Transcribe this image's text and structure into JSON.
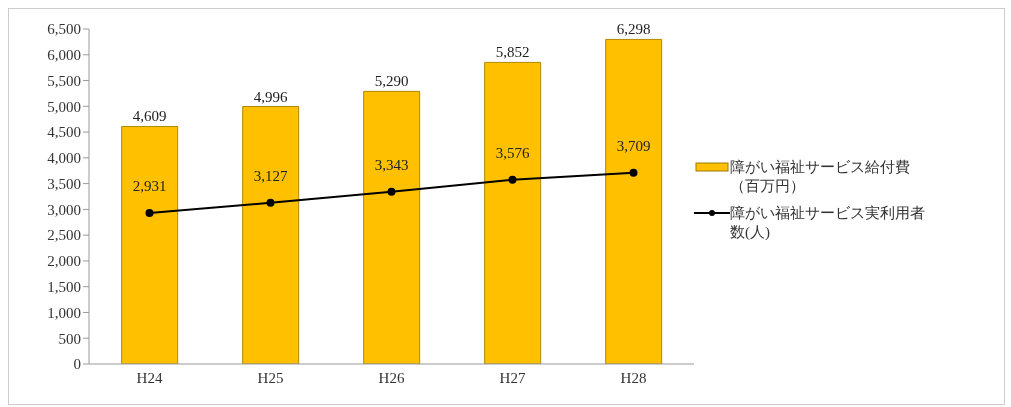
{
  "chart_data": {
    "type": "bar",
    "categories": [
      "H24",
      "H25",
      "H26",
      "H27",
      "H28"
    ],
    "series": [
      {
        "name": "障がい福祉サービス給付費（百万円）",
        "color": "#ffc000",
        "values": [
          4609,
          4996,
          5290,
          5852,
          6298
        ],
        "value_labels": [
          "4,609",
          "4,996",
          "5,290",
          "5,852",
          "6,298"
        ]
      },
      {
        "name": "障がい福祉サービス実利用者数(人)",
        "type": "line",
        "color": "#000000",
        "values": [
          2931,
          3127,
          3343,
          3576,
          3709
        ],
        "value_labels": [
          "2,931",
          "3,127",
          "3,343",
          "3,576",
          "3,709"
        ]
      }
    ],
    "ylim": [
      0,
      6500
    ],
    "yticks": [
      {
        "value": 0,
        "label": "0"
      },
      {
        "value": 500,
        "label": "500"
      },
      {
        "value": 1000,
        "label": "1,000"
      },
      {
        "value": 1500,
        "label": "1,500"
      },
      {
        "value": 2000,
        "label": "2,000"
      },
      {
        "value": 2500,
        "label": "2,500"
      },
      {
        "value": 3000,
        "label": "3,000"
      },
      {
        "value": 3500,
        "label": "3,500"
      },
      {
        "value": 4000,
        "label": "4,000"
      },
      {
        "value": 4500,
        "label": "4,500"
      },
      {
        "value": 5000,
        "label": "5,000"
      },
      {
        "value": 5500,
        "label": "5,500"
      },
      {
        "value": 6000,
        "label": "6,000"
      },
      {
        "value": 6500,
        "label": "6,500"
      }
    ],
    "grid": false,
    "legend": "right",
    "marker": "circle"
  }
}
